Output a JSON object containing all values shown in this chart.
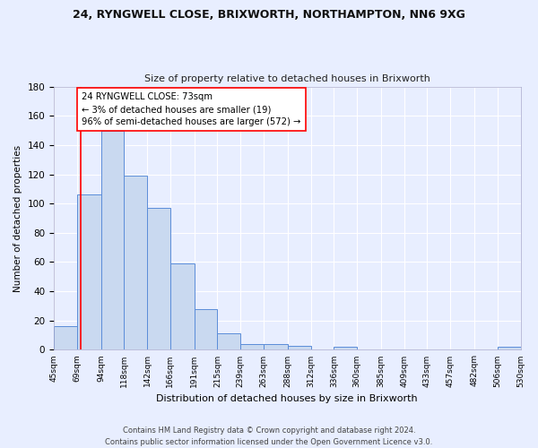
{
  "title1": "24, RYNGWELL CLOSE, BRIXWORTH, NORTHAMPTON, NN6 9XG",
  "title2": "Size of property relative to detached houses in Brixworth",
  "xlabel": "Distribution of detached houses by size in Brixworth",
  "ylabel": "Number of detached properties",
  "bin_edges": [
    45,
    69,
    94,
    118,
    142,
    166,
    191,
    215,
    239,
    263,
    288,
    312,
    336,
    360,
    385,
    409,
    433,
    457,
    482,
    506,
    530
  ],
  "bar_heights": [
    16,
    106,
    150,
    119,
    97,
    59,
    28,
    11,
    4,
    4,
    3,
    0,
    2,
    0,
    0,
    0,
    0,
    0,
    0,
    2
  ],
  "tick_labels": [
    "45sqm",
    "69sqm",
    "94sqm",
    "118sqm",
    "142sqm",
    "166sqm",
    "191sqm",
    "215sqm",
    "239sqm",
    "263sqm",
    "288sqm",
    "312sqm",
    "336sqm",
    "360sqm",
    "385sqm",
    "409sqm",
    "433sqm",
    "457sqm",
    "482sqm",
    "506sqm",
    "530sqm"
  ],
  "bar_color": "#c9d9f0",
  "bar_edge_color": "#5b8dd9",
  "red_line_x": 73,
  "annotation_text": "24 RYNGWELL CLOSE: 73sqm\n← 3% of detached houses are smaller (19)\n96% of semi-detached houses are larger (572) →",
  "footer1": "Contains HM Land Registry data © Crown copyright and database right 2024.",
  "footer2": "Contains public sector information licensed under the Open Government Licence v3.0.",
  "ylim": [
    0,
    180
  ],
  "yticks": [
    0,
    20,
    40,
    60,
    80,
    100,
    120,
    140,
    160,
    180
  ],
  "background_color": "#e8eeff",
  "grid_color": "#ffffff"
}
